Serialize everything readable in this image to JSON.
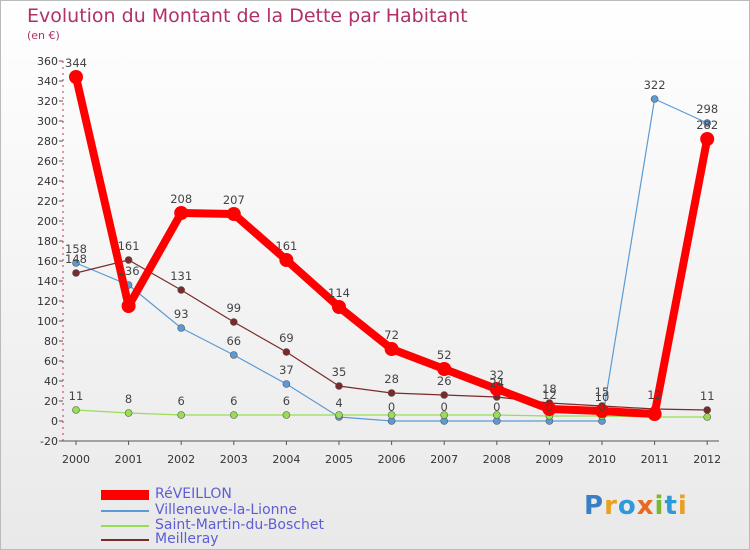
{
  "chart_data": {
    "type": "line",
    "title": "Evolution du Montant de la Dette par Habitant",
    "unit_label": "(en €)",
    "xlabel": "",
    "ylabel": "",
    "ylim": [
      -20,
      360
    ],
    "yticks": [
      -20,
      0,
      20,
      40,
      60,
      80,
      100,
      120,
      140,
      160,
      180,
      200,
      220,
      240,
      260,
      280,
      300,
      320,
      340,
      360
    ],
    "categories": [
      "2000",
      "2001",
      "2002",
      "2003",
      "2004",
      "2005",
      "2006",
      "2007",
      "2008",
      "2009",
      "2010",
      "2011",
      "2012"
    ],
    "grid": false,
    "legend_position": "bottom-left",
    "series": [
      {
        "name": "RéVEILLON",
        "color": "#ff0000",
        "emphasis": true,
        "values": [
          344,
          115,
          208,
          207,
          161,
          114,
          72,
          52,
          32,
          12,
          10,
          7,
          282
        ],
        "labels": [
          "344",
          "",
          "208",
          "207",
          "161",
          "114",
          "72",
          "52",
          "32",
          "12",
          "10",
          "",
          "282"
        ]
      },
      {
        "name": "Villeneuve-la-Lionne",
        "color": "#5b9bd5",
        "emphasis": false,
        "values": [
          158,
          136,
          93,
          66,
          37,
          4,
          0,
          0,
          0,
          0,
          0,
          322,
          298
        ],
        "labels": [
          "158",
          "136",
          "93",
          "66",
          "37",
          "4",
          "0",
          "0",
          "0",
          "0",
          "0",
          "322",
          "298"
        ]
      },
      {
        "name": "Saint-Martin-du-Boschet",
        "color": "#99dd55",
        "emphasis": false,
        "values": [
          11,
          8,
          6,
          6,
          6,
          6,
          6,
          6,
          6,
          5,
          5,
          4,
          4
        ],
        "labels": [
          "11",
          "8",
          "6",
          "6",
          "6",
          "",
          "",
          "",
          "",
          "",
          "",
          "",
          ""
        ]
      },
      {
        "name": "Meilleray",
        "color": "#7a2a2a",
        "emphasis": false,
        "values": [
          148,
          161,
          131,
          99,
          69,
          35,
          28,
          26,
          24,
          18,
          15,
          12,
          11
        ],
        "labels": [
          "148",
          "161",
          "131",
          "99",
          "69",
          "35",
          "28",
          "26",
          "24",
          "18",
          "15",
          "12",
          "11"
        ]
      }
    ]
  },
  "logo": {
    "letters": [
      "P",
      "r",
      "o",
      "x",
      "i",
      "t",
      "i"
    ]
  }
}
